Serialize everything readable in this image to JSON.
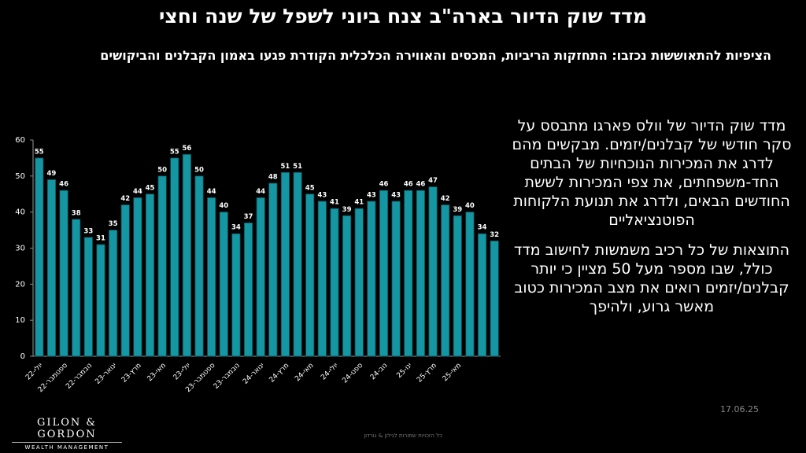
{
  "title": "מדד שוק הדיור בארה\"ב צנח ביוני לשפל של שנה וחצי",
  "subtitle": "הציפיות להתאוששות נכזבו: התחזקות הריביות, המכסים והאווירה הכלכלית הקודרת פגעו באמון הקבלנים והביקושים",
  "paragraphs": [
    "מדד שוק הדיור של וולס פארגו מתבסס על סקר חודשי של קבלנים/יזמים. מבקשים מהם לדרג את  המכירות הנוכחיות של הבתים החד-משפחתים, את צפי המכירות לששת החודשים הבאים, ולדרג את תנועת הלקוחות הפוטנציאליים",
    "התוצאות של כל רכיב משמשות לחישוב מדד כולל, שבו מספר מעל 50 מציין כי יותר קבלנים/יזמים רואים את מצב  המכירות כטוב מאשר גרוע, ולהיפך"
  ],
  "date": "17.06.25",
  "footer": "כל הזכויות שמורות לגילון & גורדון",
  "logo": {
    "name": "GILON & GORDON",
    "tagline": "WEALTH MANAGEMENT"
  },
  "chart_data": {
    "type": "bar",
    "color": "#1596a3",
    "categories": [
      "יולי-22",
      null,
      "ספטמבר-22",
      null,
      "נובמבר-22",
      null,
      "ינואר-23",
      null,
      "מרץ-23",
      null,
      "מאי-23",
      null,
      "יולי-23",
      null,
      "ספטמבר-23",
      null,
      "נובמבר-23",
      null,
      "ינואר-24",
      null,
      "מרץ-24",
      null,
      "מאי-24",
      null,
      "יולי-24",
      null,
      "ספט-24",
      null,
      "נוב-24",
      null,
      "ינו-25",
      null,
      "מרץ-25",
      null,
      "מאי-25",
      null,
      null,
      null
    ],
    "values": [
      55,
      49,
      46,
      38,
      33,
      31,
      35,
      42,
      44,
      45,
      50,
      55,
      56,
      50,
      44,
      40,
      34,
      37,
      44,
      48,
      51,
      51,
      45,
      43,
      41,
      39,
      41,
      43,
      46,
      43,
      46,
      46,
      47,
      42,
      39,
      40,
      34,
      32
    ],
    "ylim": [
      0,
      60
    ],
    "yticks": [
      0,
      10,
      20,
      30,
      40,
      50,
      60
    ],
    "grid": false
  }
}
